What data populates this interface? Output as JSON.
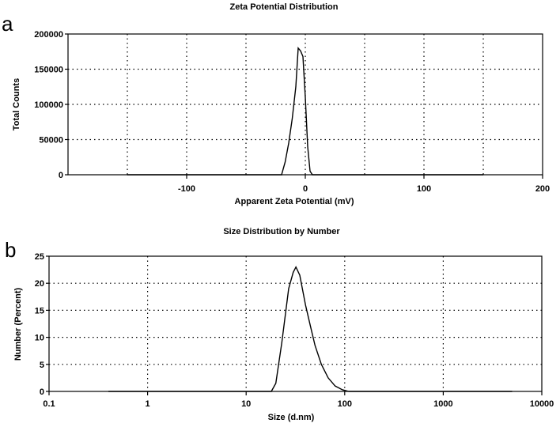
{
  "chart_data": [
    {
      "panel": "a",
      "type": "line",
      "title": "Zeta Potential Distribution",
      "xlabel": "Apparent Zeta Potential (mV)",
      "ylabel": "Total Counts",
      "xlim": [
        -200,
        200
      ],
      "ylim": [
        0,
        200000
      ],
      "x_scale": "linear",
      "x_ticks": [
        -100,
        0,
        100,
        200
      ],
      "x_tick_labels": [
        "-100",
        "0",
        "100",
        "200"
      ],
      "y_ticks": [
        0,
        50000,
        100000,
        150000,
        200000
      ],
      "y_tick_labels": [
        "0",
        "50000",
        "100000",
        "150000",
        "200000"
      ],
      "grid": true,
      "series": [
        {
          "x": [
            -150,
            -50,
            -20,
            -17,
            -14,
            -11,
            -8,
            -6,
            -4,
            -2,
            0,
            2,
            4,
            6,
            50,
            150
          ],
          "y": [
            0,
            0,
            0,
            18000,
            45000,
            80000,
            125000,
            180000,
            176000,
            168000,
            110000,
            40000,
            5000,
            0,
            0,
            0
          ]
        }
      ]
    },
    {
      "panel": "b",
      "type": "line",
      "title": "Size Distribution by Number",
      "xlabel": "Size (d.nm)",
      "ylabel": "Number (Percent)",
      "xlim": [
        0.1,
        10000
      ],
      "ylim": [
        0,
        25
      ],
      "x_scale": "log",
      "x_ticks": [
        0.1,
        1,
        10,
        100,
        1000,
        10000
      ],
      "x_tick_labels": [
        "0.1",
        "1",
        "10",
        "100",
        "1000",
        "10000"
      ],
      "y_ticks": [
        0,
        5,
        10,
        15,
        20,
        25
      ],
      "y_tick_labels": [
        "0",
        "5",
        "10",
        "15",
        "20",
        "25"
      ],
      "grid": true,
      "series": [
        {
          "x": [
            0.4,
            10,
            18,
            20,
            23,
            27,
            30,
            32,
            35,
            40,
            45,
            50,
            58,
            68,
            80,
            95,
            110,
            5000
          ],
          "y": [
            0,
            0,
            0,
            1.5,
            9,
            19,
            22,
            23,
            21.5,
            16,
            12,
            8.5,
            5,
            2.5,
            1,
            0.3,
            0,
            0
          ]
        }
      ]
    }
  ]
}
